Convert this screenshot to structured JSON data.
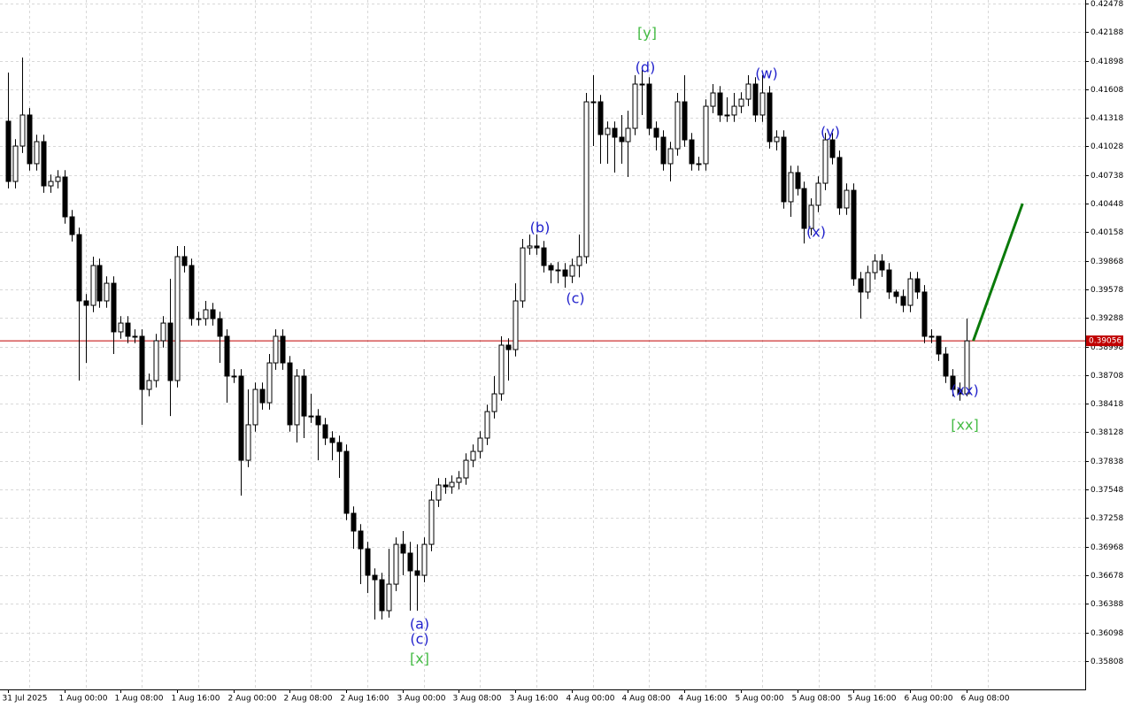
{
  "chart_data": {
    "type": "candlestick",
    "categories": [
      "31 Jul 2025",
      null,
      null,
      null,
      null,
      null,
      null,
      null,
      "1 Aug 00:00",
      null,
      null,
      null,
      null,
      null,
      null,
      null,
      "1 Aug 08:00",
      null,
      null,
      null,
      null,
      null,
      null,
      null,
      "1 Aug 16:00",
      null,
      null,
      null,
      null,
      null,
      null,
      null,
      "2 Aug 00:00",
      null,
      null,
      null,
      null,
      null,
      null,
      null,
      "2 Aug 08:00",
      null,
      null,
      null,
      null,
      null,
      null,
      null,
      "2 Aug 16:00",
      null,
      null,
      null,
      null,
      null,
      null,
      null,
      "3 Aug 00:00",
      null,
      null,
      null,
      null,
      null,
      null,
      null,
      "3 Aug 08:00",
      null,
      null,
      null,
      null,
      null,
      null,
      null,
      "3 Aug 16:00",
      null,
      null,
      null,
      null,
      null,
      null,
      null,
      "4 Aug 00:00",
      null,
      null,
      null,
      null,
      null,
      null,
      null,
      "4 Aug 08:00",
      null,
      null,
      null,
      null,
      null,
      null,
      null,
      "4 Aug 16:00",
      null,
      null,
      null,
      null,
      null,
      null,
      null,
      "5 Aug 00:00",
      null,
      null,
      null,
      null,
      null,
      null,
      null,
      "5 Aug 08:00",
      null,
      null,
      null,
      null,
      null,
      null,
      null,
      "5 Aug 16:00",
      null,
      null,
      null,
      null,
      null,
      null,
      null,
      "6 Aug 00:00",
      null,
      null,
      null,
      null,
      null,
      null,
      null,
      "6 Aug 08:00"
    ],
    "open": [
      0.41284,
      0.40673,
      0.41032,
      0.41347,
      0.40853,
      0.41077,
      0.40628,
      0.40673,
      0.40718,
      0.40314,
      0.40134,
      0.39461,
      0.39416,
      0.3982,
      0.39461,
      0.3964,
      0.39147,
      0.39236,
      0.39102,
      0.39102,
      0.38563,
      0.38653,
      0.39057,
      0.39236,
      0.38653,
      0.3991,
      0.3982,
      0.39281,
      0.39281,
      0.39371,
      0.39281,
      0.39102,
      0.38698,
      0.38698,
      0.37844,
      0.38204,
      0.38563,
      0.38428,
      0.38832,
      0.39102,
      0.38832,
      0.38204,
      0.38698,
      0.38293,
      0.38293,
      0.38204,
      0.38069,
      0.38024,
      0.37934,
      0.37306,
      0.37126,
      0.36946,
      0.36677,
      0.36632,
      0.36318,
      0.36587,
      0.36991,
      0.36902,
      0.36722,
      0.36677,
      0.36991,
      0.3744,
      0.37593,
      0.37575,
      0.3762,
      0.37665,
      0.37844,
      0.37934,
      0.38069,
      0.38338,
      0.38518,
      0.39012,
      0.38967,
      0.39461,
      0.39999,
      0.40018,
      0.39999,
      0.3982,
      0.39775,
      0.39775,
      0.39712,
      0.3982,
      0.3991,
      0.41481,
      0.41481,
      0.41149,
      0.41212,
      0.41122,
      0.41077,
      0.41212,
      0.41661,
      0.41661,
      0.41212,
      0.41122,
      0.40853,
      0.41005,
      0.41481,
      0.41095,
      0.40853,
      0.40853,
      0.41436,
      0.41571,
      0.41347,
      0.41347,
      0.41436,
      0.41508,
      0.41661,
      0.41347,
      0.41571,
      0.41077,
      0.41122,
      0.40467,
      0.40763,
      0.40601,
      0.40197,
      0.40431,
      0.40655,
      0.41095,
      0.40916,
      0.40404,
      0.40583,
      0.39685,
      0.39551,
      0.39748,
      0.39865,
      0.39775,
      0.39551,
      0.39506,
      0.39416,
      0.39685,
      0.39551,
      0.39102,
      0.39102,
      0.38922,
      0.38698,
      0.38563,
      0.38518
    ],
    "high": [
      0.41778,
      0.41102,
      0.4193,
      0.41417,
      0.41147,
      0.41147,
      0.40743,
      0.40788,
      0.40788,
      0.40384,
      0.40204,
      0.39531,
      0.3991,
      0.3989,
      0.3971,
      0.3971,
      0.39306,
      0.39306,
      0.39172,
      0.39172,
      0.38723,
      0.39127,
      0.39306,
      0.39685,
      0.40018,
      0.40018,
      0.3989,
      0.39351,
      0.39461,
      0.39441,
      0.39351,
      0.39172,
      0.38768,
      0.38768,
      0.38563,
      0.38633,
      0.38633,
      0.38922,
      0.39172,
      0.39172,
      0.38902,
      0.38768,
      0.38768,
      0.38518,
      0.38363,
      0.38274,
      0.38139,
      0.38094,
      0.38004,
      0.37376,
      0.37196,
      0.37016,
      0.36747,
      0.36702,
      0.36946,
      0.37061,
      0.37126,
      0.37016,
      0.36991,
      0.37061,
      0.3753,
      0.37663,
      0.37665,
      0.3769,
      0.37735,
      0.37914,
      0.38004,
      0.38139,
      0.38408,
      0.38698,
      0.39102,
      0.39082,
      0.3964,
      0.40089,
      0.40134,
      0.40134,
      0.40069,
      0.39845,
      0.39855,
      0.39845,
      0.3989,
      0.40134,
      0.41571,
      0.41751,
      0.41551,
      0.41282,
      0.41282,
      0.41347,
      0.41391,
      0.41751,
      0.4184,
      0.41731,
      0.41282,
      0.41192,
      0.41075,
      0.41571,
      0.41751,
      0.41165,
      0.40923,
      0.41506,
      0.41661,
      0.41641,
      0.41526,
      0.41571,
      0.41578,
      0.41751,
      0.41731,
      0.41751,
      0.41641,
      0.41192,
      0.41192,
      0.40833,
      0.40833,
      0.40671,
      0.40501,
      0.40725,
      0.41165,
      0.41165,
      0.40986,
      0.40653,
      0.40653,
      0.39755,
      0.39818,
      0.39935,
      0.39935,
      0.39845,
      0.39576,
      0.39576,
      0.39755,
      0.39755,
      0.39621,
      0.39172,
      0.39057,
      0.38992,
      0.38768,
      0.38633,
      0.39281
    ],
    "low": [
      0.40603,
      0.40603,
      0.40962,
      0.40783,
      0.40783,
      0.40558,
      0.40558,
      0.40603,
      0.40244,
      0.40064,
      0.38653,
      0.38832,
      0.39346,
      0.39391,
      0.39391,
      0.38922,
      0.39077,
      0.39032,
      0.39032,
      0.38204,
      0.38493,
      0.38583,
      0.38987,
      0.38293,
      0.38583,
      0.3975,
      0.39211,
      0.39211,
      0.39211,
      0.39211,
      0.38832,
      0.38428,
      0.38628,
      0.37485,
      0.37774,
      0.38134,
      0.38358,
      0.38358,
      0.38762,
      0.38762,
      0.38134,
      0.38024,
      0.38069,
      0.38223,
      0.37844,
      0.37999,
      0.37844,
      0.37665,
      0.37236,
      0.36946,
      0.36587,
      0.36497,
      0.36228,
      0.36228,
      0.36248,
      0.36517,
      0.36677,
      0.36318,
      0.36317,
      0.36607,
      0.36921,
      0.3737,
      0.37505,
      0.37505,
      0.3755,
      0.37595,
      0.37774,
      0.37864,
      0.37999,
      0.38268,
      0.38448,
      0.38653,
      0.38897,
      0.39391,
      0.39929,
      0.39929,
      0.3975,
      0.3964,
      0.3964,
      0.39595,
      0.39642,
      0.397,
      0.3984,
      0.41032,
      0.40853,
      0.40853,
      0.40763,
      0.40853,
      0.40718,
      0.41142,
      0.41347,
      0.41142,
      0.40988,
      0.40783,
      0.40673,
      0.40935,
      0.41025,
      0.40783,
      0.40783,
      0.40783,
      0.41366,
      0.41277,
      0.41277,
      0.41277,
      0.41366,
      0.41438,
      0.41277,
      0.41277,
      0.41007,
      0.40988,
      0.40397,
      0.40314,
      0.40531,
      0.40044,
      0.40127,
      0.40361,
      0.40585,
      0.40846,
      0.40334,
      0.40334,
      0.39615,
      0.39281,
      0.39481,
      0.39678,
      0.39705,
      0.39481,
      0.39436,
      0.39346,
      0.39346,
      0.39481,
      0.39032,
      0.39032,
      0.38852,
      0.38628,
      0.38493,
      0.38448,
      0.38493
    ],
    "close": [
      0.40673,
      0.41032,
      0.41347,
      0.40853,
      0.41077,
      0.40628,
      0.40673,
      0.40718,
      0.40314,
      0.40134,
      0.39461,
      0.39416,
      0.3982,
      0.39461,
      0.3964,
      0.39147,
      0.39236,
      0.39102,
      0.39102,
      0.38563,
      0.38653,
      0.39057,
      0.39236,
      0.38653,
      0.3991,
      0.3982,
      0.39281,
      0.39281,
      0.39371,
      0.39281,
      0.39102,
      0.38698,
      0.38698,
      0.37844,
      0.38204,
      0.38563,
      0.38428,
      0.38832,
      0.39102,
      0.38832,
      0.38204,
      0.38698,
      0.38293,
      0.38293,
      0.38204,
      0.38069,
      0.38024,
      0.37934,
      0.37306,
      0.37126,
      0.36946,
      0.36677,
      0.36632,
      0.36318,
      0.36587,
      0.36991,
      0.36902,
      0.36722,
      0.36677,
      0.36991,
      0.3744,
      0.37593,
      0.37575,
      0.3762,
      0.37665,
      0.37844,
      0.37934,
      0.38069,
      0.38338,
      0.38518,
      0.39012,
      0.38967,
      0.39461,
      0.39999,
      0.40018,
      0.39999,
      0.3982,
      0.39775,
      0.39775,
      0.39712,
      0.3982,
      0.3991,
      0.41481,
      0.41481,
      0.41149,
      0.41212,
      0.41122,
      0.41077,
      0.41212,
      0.41661,
      0.41661,
      0.41212,
      0.41122,
      0.40853,
      0.41005,
      0.41481,
      0.41095,
      0.40853,
      0.40853,
      0.41436,
      0.41571,
      0.41347,
      0.41347,
      0.41436,
      0.41508,
      0.41661,
      0.41347,
      0.41571,
      0.41077,
      0.41122,
      0.40467,
      0.40763,
      0.40601,
      0.40197,
      0.40431,
      0.40655,
      0.41095,
      0.40916,
      0.40404,
      0.40583,
      0.39685,
      0.39551,
      0.39748,
      0.39865,
      0.39775,
      0.39551,
      0.39506,
      0.39416,
      0.39685,
      0.39551,
      0.39102,
      0.39102,
      0.38922,
      0.38698,
      0.38563,
      0.38518,
      0.39056
    ],
    "up_color": "#ffffff",
    "down_color": "#000000",
    "ylim": [
      0.35519,
      0.42514
    ],
    "yticks": [
      0.42478,
      0.42188,
      0.41898,
      0.41608,
      0.41318,
      0.41028,
      0.40738,
      0.40448,
      0.40158,
      0.39868,
      0.39578,
      0.39288,
      0.38998,
      0.38708,
      0.38418,
      0.38128,
      0.37838,
      0.37548,
      0.37258,
      0.36968,
      0.36678,
      0.36388,
      0.36098,
      0.35808
    ],
    "grid": true,
    "current_price": 0.39056,
    "current_price_color": "#c00000",
    "forecast": {
      "x": [
        137,
        144
      ],
      "values": [
        0.39056,
        0.40449
      ],
      "color": "#0a7a0a"
    },
    "annotations": [
      {
        "text": "[y]",
        "color": "#44bb44"
      },
      {
        "text": "(d)",
        "color": "#2222cc"
      },
      {
        "text": "(w)",
        "color": "#2222cc"
      },
      {
        "text": "(y)",
        "color": "#2222cc"
      },
      {
        "text": "(b)",
        "color": "#2222cc"
      },
      {
        "text": "(c)",
        "color": "#2222cc"
      },
      {
        "text": "(x)",
        "color": "#2222cc"
      },
      {
        "text": "(a)",
        "color": "#2222cc"
      },
      {
        "text": "(c)",
        "color": "#2222cc"
      },
      {
        "text": "[x]",
        "color": "#44bb44"
      },
      {
        "text": "(xx)",
        "color": "#2222cc"
      },
      {
        "text": "[xx]",
        "color": "#44bb44"
      }
    ]
  }
}
